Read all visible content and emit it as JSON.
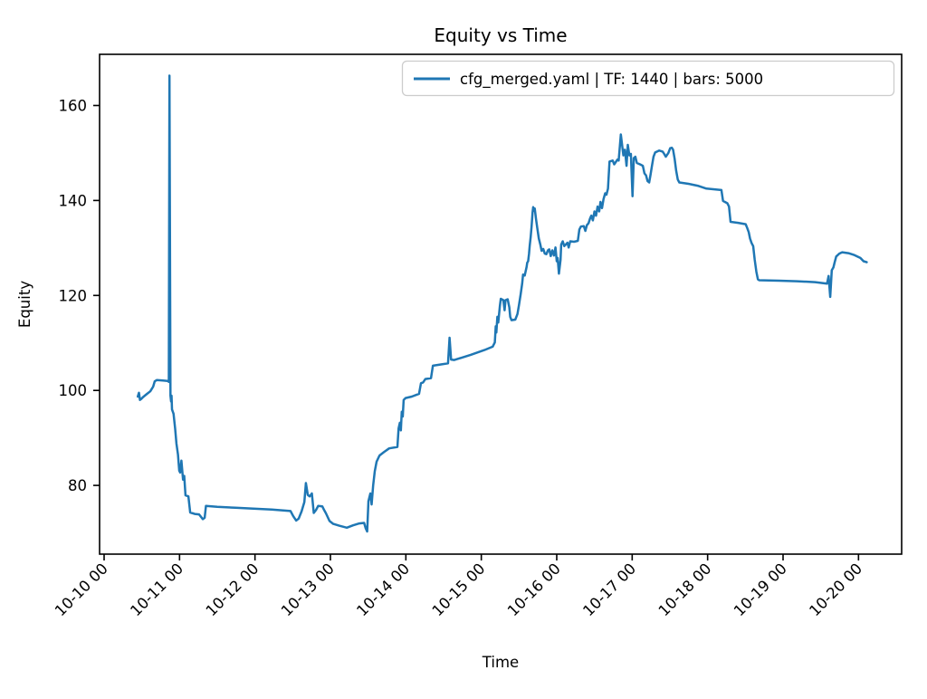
{
  "figure": {
    "title": "Equity vs Time",
    "xlabel": "Time",
    "ylabel": "Equity",
    "legend_label": "cfg_merged.yaml | TF: 1440 | bars: 5000"
  },
  "chart_data": {
    "type": "line",
    "title": "Equity vs Time",
    "xlabel": "Time",
    "ylabel": "Equity",
    "grid": false,
    "legend_position": "upper right",
    "x_unit": "hours since 10-10 00:00",
    "x_tick_hours": [
      0,
      24,
      48,
      72,
      96,
      120,
      144,
      168,
      192,
      216,
      240
    ],
    "x_tick_labels": [
      "10-10 00",
      "10-11 00",
      "10-12 00",
      "10-13 00",
      "10-14 00",
      "10-15 00",
      "10-16 00",
      "10-17 00",
      "10-18 00",
      "10-19 00",
      "10-20 00"
    ],
    "y_ticks": [
      80,
      100,
      120,
      140,
      160
    ],
    "xlim_hours": [
      -1.5,
      253.7
    ],
    "ylim": [
      65.5,
      170.8
    ],
    "series": [
      {
        "name": "cfg_merged.yaml | TF: 1440 | bars: 5000",
        "color": "#1f77b4",
        "points": [
          [
            10.7,
            98.7
          ],
          [
            11.1,
            99.5
          ],
          [
            11.4,
            98.0
          ],
          [
            11.8,
            98.2
          ],
          [
            12.4,
            98.6
          ],
          [
            13.5,
            99.2
          ],
          [
            14.7,
            99.8
          ],
          [
            15.6,
            100.8
          ],
          [
            16.1,
            101.9
          ],
          [
            16.8,
            102.2
          ],
          [
            18.7,
            102.1
          ],
          [
            20.2,
            102.0
          ],
          [
            20.6,
            101.8
          ],
          [
            20.8,
            166.3
          ],
          [
            21.1,
            98.9
          ],
          [
            21.3,
            97.7
          ],
          [
            21.45,
            98.9
          ],
          [
            21.6,
            96.0
          ],
          [
            22.1,
            95.1
          ],
          [
            22.6,
            91.9
          ],
          [
            23.0,
            88.8
          ],
          [
            23.5,
            86.5
          ],
          [
            23.9,
            83.1
          ],
          [
            24.2,
            82.7
          ],
          [
            24.6,
            85.2
          ],
          [
            25.1,
            81.2
          ],
          [
            25.5,
            82.0
          ],
          [
            25.9,
            77.9
          ],
          [
            26.8,
            77.7
          ],
          [
            27.4,
            74.3
          ],
          [
            28.8,
            74.0
          ],
          [
            30.2,
            73.9
          ],
          [
            31.4,
            72.9
          ],
          [
            32.0,
            73.2
          ],
          [
            32.4,
            75.7
          ],
          [
            36.0,
            75.5
          ],
          [
            41.8,
            75.3
          ],
          [
            47.5,
            75.1
          ],
          [
            53.3,
            74.9
          ],
          [
            59.3,
            74.6
          ],
          [
            60.2,
            73.5
          ],
          [
            61.1,
            72.6
          ],
          [
            61.9,
            73.0
          ],
          [
            62.8,
            74.5
          ],
          [
            63.7,
            76.5
          ],
          [
            64.2,
            80.5
          ],
          [
            64.8,
            78.0
          ],
          [
            65.4,
            77.7
          ],
          [
            66.1,
            78.3
          ],
          [
            66.7,
            74.2
          ],
          [
            67.4,
            74.8
          ],
          [
            68.1,
            75.7
          ],
          [
            69.4,
            75.6
          ],
          [
            70.0,
            74.8
          ],
          [
            70.6,
            74.1
          ],
          [
            71.7,
            72.5
          ],
          [
            72.9,
            71.9
          ],
          [
            74.9,
            71.5
          ],
          [
            77.2,
            71.1
          ],
          [
            79.2,
            71.6
          ],
          [
            81.2,
            72.0
          ],
          [
            82.7,
            72.1
          ],
          [
            83.2,
            71.0
          ],
          [
            83.7,
            70.3
          ],
          [
            84.1,
            76.7
          ],
          [
            84.7,
            78.3
          ],
          [
            85.1,
            76.0
          ],
          [
            85.6,
            80.0
          ],
          [
            86.1,
            83.0
          ],
          [
            86.7,
            85.0
          ],
          [
            87.6,
            86.3
          ],
          [
            89.0,
            87.0
          ],
          [
            90.7,
            87.8
          ],
          [
            93.3,
            88.1
          ],
          [
            93.7,
            92.0
          ],
          [
            94.1,
            93.2
          ],
          [
            94.4,
            91.6
          ],
          [
            94.7,
            95.5
          ],
          [
            95.0,
            94.5
          ],
          [
            95.3,
            98.0
          ],
          [
            95.9,
            98.4
          ],
          [
            97.9,
            98.7
          ],
          [
            100.2,
            99.3
          ],
          [
            100.8,
            101.5
          ],
          [
            101.5,
            101.7
          ],
          [
            102.2,
            102.4
          ],
          [
            104.0,
            102.6
          ],
          [
            104.6,
            105.2
          ],
          [
            107.4,
            105.5
          ],
          [
            109.4,
            105.7
          ],
          [
            109.9,
            111.1
          ],
          [
            110.4,
            106.5
          ],
          [
            111.4,
            106.4
          ],
          [
            116.6,
            107.5
          ],
          [
            121.0,
            108.5
          ],
          [
            123.6,
            109.2
          ],
          [
            124.3,
            110.1
          ],
          [
            124.6,
            113.5
          ],
          [
            124.8,
            112.2
          ],
          [
            125.1,
            115.5
          ],
          [
            125.4,
            114.3
          ],
          [
            125.9,
            117.8
          ],
          [
            126.2,
            119.3
          ],
          [
            127.0,
            119.0
          ],
          [
            127.4,
            116.9
          ],
          [
            127.7,
            119.0
          ],
          [
            128.4,
            119.2
          ],
          [
            128.9,
            117.5
          ],
          [
            129.2,
            115.5
          ],
          [
            129.6,
            114.8
          ],
          [
            130.8,
            114.9
          ],
          [
            131.5,
            116.1
          ],
          [
            132.0,
            118.0
          ],
          [
            132.5,
            120.2
          ],
          [
            133.0,
            122.5
          ],
          [
            133.3,
            124.4
          ],
          [
            133.8,
            124.2
          ],
          [
            134.4,
            126.0
          ],
          [
            134.6,
            126.9
          ],
          [
            134.9,
            127.2
          ],
          [
            135.2,
            128.8
          ],
          [
            135.4,
            130.4
          ],
          [
            135.7,
            132.3
          ],
          [
            136.0,
            134.5
          ],
          [
            136.3,
            137.5
          ],
          [
            136.5,
            138.6
          ],
          [
            136.7,
            137.8
          ],
          [
            137.0,
            138.3
          ],
          [
            137.4,
            136.1
          ],
          [
            137.8,
            134.2
          ],
          [
            138.3,
            132.0
          ],
          [
            138.8,
            130.7
          ],
          [
            139.2,
            129.4
          ],
          [
            139.7,
            129.8
          ],
          [
            140.2,
            128.8
          ],
          [
            140.7,
            128.7
          ],
          [
            141.2,
            129.5
          ],
          [
            141.6,
            129.7
          ],
          [
            142.1,
            128.3
          ],
          [
            142.6,
            129.5
          ],
          [
            143.1,
            128.4
          ],
          [
            143.6,
            130.1
          ],
          [
            144.0,
            127.2
          ],
          [
            144.3,
            127.9
          ],
          [
            144.7,
            124.6
          ],
          [
            145.2,
            127.5
          ],
          [
            145.4,
            130.7
          ],
          [
            145.9,
            131.4
          ],
          [
            146.4,
            130.4
          ],
          [
            147.4,
            131.1
          ],
          [
            147.8,
            130.1
          ],
          [
            148.3,
            131.4
          ],
          [
            149.5,
            131.3
          ],
          [
            150.7,
            131.5
          ],
          [
            151.2,
            133.9
          ],
          [
            151.7,
            134.5
          ],
          [
            152.6,
            134.6
          ],
          [
            153.1,
            133.6
          ],
          [
            153.6,
            134.8
          ],
          [
            154.1,
            135.2
          ],
          [
            154.6,
            136.2
          ],
          [
            155.0,
            136.8
          ],
          [
            155.5,
            135.8
          ],
          [
            156.0,
            137.7
          ],
          [
            156.5,
            136.8
          ],
          [
            157.0,
            138.7
          ],
          [
            157.5,
            137.7
          ],
          [
            157.9,
            139.7
          ],
          [
            158.4,
            138.4
          ],
          [
            158.9,
            140.3
          ],
          [
            159.4,
            141.5
          ],
          [
            159.8,
            141.2
          ],
          [
            160.3,
            142.5
          ],
          [
            160.8,
            148.2
          ],
          [
            161.8,
            148.4
          ],
          [
            162.3,
            147.6
          ],
          [
            163.3,
            148.6
          ],
          [
            163.7,
            148.4
          ],
          [
            164.4,
            153.9
          ],
          [
            165.2,
            149.5
          ],
          [
            165.7,
            150.7
          ],
          [
            166.2,
            147.3
          ],
          [
            166.6,
            151.7
          ],
          [
            167.1,
            149.5
          ],
          [
            167.6,
            149.8
          ],
          [
            168.1,
            140.9
          ],
          [
            168.5,
            148.9
          ],
          [
            169.0,
            149.2
          ],
          [
            169.5,
            147.9
          ],
          [
            170.5,
            147.6
          ],
          [
            171.4,
            147.3
          ],
          [
            171.9,
            145.7
          ],
          [
            172.4,
            145.3
          ],
          [
            172.9,
            144.1
          ],
          [
            173.4,
            143.8
          ],
          [
            173.8,
            145.3
          ],
          [
            174.3,
            147.3
          ],
          [
            174.8,
            149.2
          ],
          [
            175.3,
            150.1
          ],
          [
            176.6,
            150.5
          ],
          [
            177.7,
            150.3
          ],
          [
            178.2,
            149.8
          ],
          [
            178.7,
            149.2
          ],
          [
            179.5,
            150.0
          ],
          [
            180.1,
            151.0
          ],
          [
            180.6,
            151.1
          ],
          [
            181.0,
            150.7
          ],
          [
            181.5,
            148.8
          ],
          [
            182.0,
            146.3
          ],
          [
            182.5,
            144.4
          ],
          [
            183.0,
            143.8
          ],
          [
            185.9,
            143.5
          ],
          [
            188.8,
            143.1
          ],
          [
            191.6,
            142.5
          ],
          [
            196.4,
            142.2
          ],
          [
            196.9,
            139.9
          ],
          [
            198.3,
            139.4
          ],
          [
            198.8,
            138.7
          ],
          [
            199.3,
            135.5
          ],
          [
            201.7,
            135.3
          ],
          [
            204.1,
            135.0
          ],
          [
            204.6,
            134.2
          ],
          [
            205.1,
            133.3
          ],
          [
            205.5,
            132.0
          ],
          [
            206.0,
            131.0
          ],
          [
            206.5,
            130.4
          ],
          [
            207.0,
            127.5
          ],
          [
            207.5,
            125.0
          ],
          [
            208.0,
            123.4
          ],
          [
            208.4,
            123.2
          ],
          [
            214.7,
            123.1
          ],
          [
            220.4,
            123.0
          ],
          [
            226.2,
            122.8
          ],
          [
            230.0,
            122.5
          ],
          [
            230.5,
            124.1
          ],
          [
            231.0,
            119.7
          ],
          [
            231.5,
            125.3
          ],
          [
            232.0,
            125.9
          ],
          [
            232.4,
            126.9
          ],
          [
            232.9,
            128.2
          ],
          [
            233.9,
            128.8
          ],
          [
            234.8,
            129.1
          ],
          [
            236.8,
            128.9
          ],
          [
            238.7,
            128.5
          ],
          [
            240.6,
            127.9
          ],
          [
            241.6,
            127.2
          ],
          [
            242.6,
            127.0
          ]
        ]
      }
    ]
  }
}
